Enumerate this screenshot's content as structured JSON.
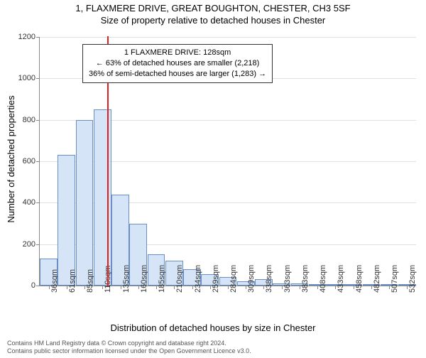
{
  "title": "1, FLAXMERE DRIVE, GREAT BOUGHTON, CHESTER, CH3 5SF",
  "subtitle": "Size of property relative to detached houses in Chester",
  "chart": {
    "type": "histogram",
    "background_color": "#ffffff",
    "grid_color": "#e0e0e0",
    "axis_color": "#888888",
    "bar_fill": "#d6e4f7",
    "bar_border": "#6a8fc5",
    "rule_color": "#e02020",
    "ylim": [
      0,
      1200
    ],
    "ytick_step": 200,
    "yticks": [
      0,
      200,
      400,
      600,
      800,
      1000,
      1200
    ],
    "categories": [
      "36sqm",
      "61sqm",
      "85sqm",
      "110sqm",
      "135sqm",
      "160sqm",
      "185sqm",
      "210sqm",
      "234sqm",
      "259sqm",
      "284sqm",
      "309sqm",
      "338sqm",
      "363sqm",
      "383sqm",
      "408sqm",
      "433sqm",
      "458sqm",
      "482sqm",
      "507sqm",
      "532sqm"
    ],
    "values": [
      130,
      630,
      800,
      850,
      440,
      300,
      150,
      120,
      80,
      55,
      40,
      20,
      30,
      12,
      10,
      8,
      6,
      6,
      5,
      4,
      8
    ],
    "rule_index": 3.75,
    "ylabel": "Number of detached properties",
    "xlabel": "Distribution of detached houses by size in Chester",
    "tick_fontsize": 11,
    "label_fontsize": 13
  },
  "annotation": {
    "line1": "1 FLAXMERE DRIVE: 128sqm",
    "line2": "← 63% of detached houses are smaller (2,218)",
    "line3": "36% of semi-detached houses are larger (1,283) →",
    "border_color": "#333333",
    "bg_color": "#ffffff",
    "fontsize": 11
  },
  "footer": {
    "line1": "Contains HM Land Registry data © Crown copyright and database right 2024.",
    "line2": "Contains public sector information licensed under the Open Government Licence v3.0."
  }
}
